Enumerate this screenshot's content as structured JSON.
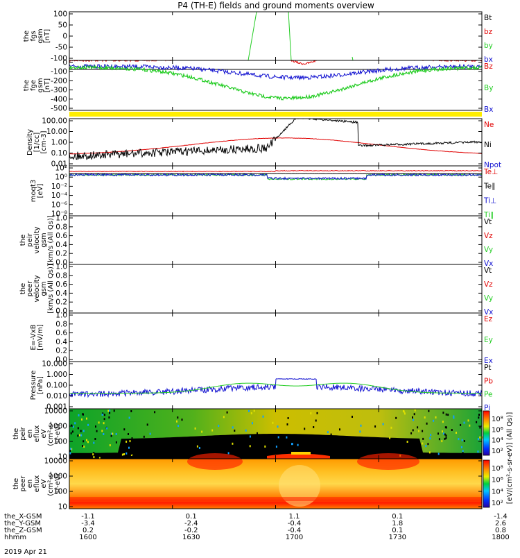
{
  "title": "P4 (TH-E) fields and ground moments overview",
  "date_label": "2019 Apr 21",
  "colors": {
    "black": "#000000",
    "red": "#e00000",
    "green": "#22cc22",
    "blue": "#1010d0",
    "yellow": "#ffee00"
  },
  "chart_data": [
    {
      "type": "line",
      "ylabel": [
        "the",
        "fgs",
        "gsm",
        "[nT]"
      ],
      "yticks": [
        "100",
        "50",
        "0",
        "-50",
        "-100"
      ],
      "ylim": [
        -100,
        100
      ],
      "legend": [
        {
          "label": "Bt",
          "color": "#000000"
        },
        {
          "label": "bz",
          "color": "#e00000"
        },
        {
          "label": "by",
          "color": "#22cc22"
        },
        {
          "label": "bx",
          "color": "#1010d0"
        }
      ]
    },
    {
      "type": "line",
      "ylabel": [
        "the",
        "fge",
        "gsm",
        "[nT]"
      ],
      "yticks": [
        "0",
        "-100",
        "-200",
        "-300",
        "-400",
        "-500"
      ],
      "ylim": [
        -540,
        40
      ],
      "legend": [
        {
          "label": "Bz",
          "color": "#e00000"
        },
        {
          "label": "By",
          "color": "#22cc22"
        },
        {
          "label": "Bx",
          "color": "#1010d0"
        }
      ]
    },
    {
      "type": "line",
      "log_scale": true,
      "ylabel": [
        "Density",
        "[1/cc]",
        "[cm-3]"
      ],
      "yticks": [
        "100.00",
        "10.00",
        "1.00",
        "0.10",
        "0.01"
      ],
      "legend": [
        {
          "label": "Ne",
          "color": "#e00000"
        },
        {
          "label": "Ni",
          "color": "#000000"
        },
        {
          "label": "Npot",
          "color": "#1010d0"
        }
      ]
    },
    {
      "type": "line",
      "log_scale": true,
      "ylabel": [
        "moqt3",
        "[eV]"
      ],
      "yticks": [
        "10²",
        "10⁰",
        "10⁻²",
        "10⁻⁴",
        "10⁻⁶",
        "10⁻⁸"
      ],
      "legend": [
        {
          "label": "Te⊥",
          "color": "#e00000"
        },
        {
          "label": "Te∥",
          "color": "#000000"
        },
        {
          "label": "Ti⊥",
          "color": "#1010d0"
        },
        {
          "label": "Ti∥",
          "color": "#22cc22"
        }
      ]
    },
    {
      "type": "line",
      "ylabel": [
        "the",
        "peir",
        "velocity",
        "gsm",
        "[km/s (All Qs)]"
      ],
      "yticks": [
        "1.0",
        "0.8",
        "0.6",
        "0.4",
        "0.2",
        "0.0"
      ],
      "ylim": [
        0,
        1
      ],
      "legend": [
        {
          "label": "Vt",
          "color": "#000000"
        },
        {
          "label": "Vz",
          "color": "#e00000"
        },
        {
          "label": "Vy",
          "color": "#22cc22"
        },
        {
          "label": "Vx",
          "color": "#1010d0"
        }
      ]
    },
    {
      "type": "line",
      "ylabel": [
        "the",
        "peer",
        "velocity",
        "gsm",
        "[km/s (All Qs)]"
      ],
      "yticks": [
        "1.0",
        "0.8",
        "0.6",
        "0.4",
        "0.2",
        "0.0"
      ],
      "ylim": [
        0,
        1
      ],
      "legend": [
        {
          "label": "Vt",
          "color": "#000000"
        },
        {
          "label": "Vz",
          "color": "#e00000"
        },
        {
          "label": "Vy",
          "color": "#22cc22"
        },
        {
          "label": "Vx",
          "color": "#1010d0"
        }
      ]
    },
    {
      "type": "line",
      "ylabel": [
        "E=-VxB",
        "[mV/m]"
      ],
      "yticks": [
        "1.0",
        "0.8",
        "0.6",
        "0.4",
        "0.2",
        "0.0"
      ],
      "ylim": [
        0,
        1
      ],
      "legend": [
        {
          "label": "Ez",
          "color": "#e00000"
        },
        {
          "label": "Ey",
          "color": "#22cc22"
        },
        {
          "label": "Ex",
          "color": "#1010d0"
        }
      ]
    },
    {
      "type": "line",
      "log_scale": true,
      "ylabel": [
        "Pressure",
        "[nPa]"
      ],
      "yticks": [
        "10.000",
        "1.000",
        "0.100",
        "0.010",
        "0.001"
      ],
      "legend": [
        {
          "label": "Pt",
          "color": "#000000"
        },
        {
          "label": "Pb",
          "color": "#e00000"
        },
        {
          "label": "Pe",
          "color": "#22cc22"
        },
        {
          "label": "Pi",
          "color": "#1010d0"
        }
      ]
    },
    {
      "type": "heatmap",
      "ylabel": [
        "the",
        "peir",
        "en",
        "eflux",
        "eV",
        "(cm²-s-",
        "sr-eV)"
      ],
      "yticks": [
        "10000",
        "1000",
        "100",
        "10"
      ],
      "colorbar_ticks": [
        "10⁸",
        "10⁶",
        "10⁴",
        "10²"
      ],
      "colorbar_label": "[eV/(cm²-s-sr-eV)] (All Qs)]"
    },
    {
      "type": "heatmap",
      "ylabel": [
        "the",
        "peer",
        "en",
        "eflux",
        "eV",
        "(cm²-s-",
        "sr-eV)"
      ],
      "yticks": [
        "10000",
        "1000",
        "100",
        "10"
      ],
      "colorbar_ticks": [
        "10⁸",
        "10⁶",
        "10⁴",
        "10²"
      ],
      "colorbar_label": "[eV/(cm²-s-sr-eV)]"
    }
  ],
  "xaxis": {
    "row_labels": [
      "the_X-GSM",
      "the_Y-GSM",
      "the_Z-GSM",
      "hhmm"
    ],
    "columns": [
      [
        "-1.1",
        "-3.4",
        "0.2",
        "1600"
      ],
      [
        "0.1",
        "-2.4",
        "-0.2",
        "1630"
      ],
      [
        "1.1",
        "-0.4",
        "-0.4",
        "1700"
      ],
      [
        "0.1",
        "1.8",
        "0.1",
        "1730"
      ],
      [
        "-1.4",
        "2.6",
        "0.8",
        "1800"
      ]
    ]
  }
}
